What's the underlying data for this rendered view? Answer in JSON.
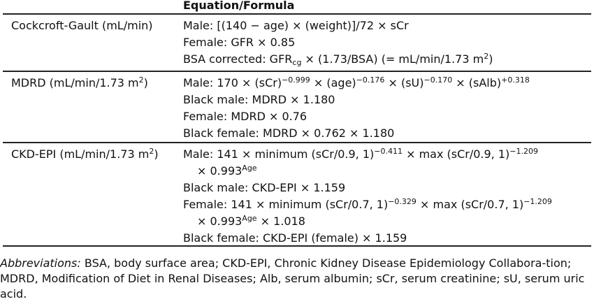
{
  "header": {
    "label": "Equation/Formula"
  },
  "rows": [
    {
      "name": "Cockcroft-Gault (mL/min)",
      "lines": [
        "Male: [(140 − age) × (weight)]/72 × sCr",
        "Female: GFR × 0.85",
        {
          "pre": "BSA corrected: GFR",
          "sub": "cg",
          "post": " × (1.73/BSA) (= mL/min/1.73 m",
          "sup": "2",
          "tail": ")"
        }
      ]
    },
    {
      "name_pre": "MDRD (mL/min/1.73 m",
      "name_sup": "2",
      "name_post": ")",
      "line1": {
        "p1": "Male: 170 × (sCr)",
        "s1": "−0.999",
        "p2": " × (age)",
        "s2": "−0.176",
        "p3": " × (sU)",
        "s3": "−0.170",
        "p4": " × (sAlb)",
        "s4": "+0.318"
      },
      "lines": [
        "Black male: MDRD × 1.180",
        "Female: MDRD × 0.76",
        "Black female: MDRD × 0.762 × 1.180"
      ]
    },
    {
      "name_pre": "CKD-EPI (mL/min/1.73 m",
      "name_sup": "2",
      "name_post": ")",
      "male": {
        "p1": "Male: 141 × minimum (sCr/0.9, 1)",
        "s1": "−0.411",
        "p2": " × max (sCr/0.9, 1)",
        "s2": "−1.209",
        "cont_pre": "× 0.993",
        "cont_sup": "Age"
      },
      "black_male": "Black male: CKD-EPI × 1.159",
      "female": {
        "p1": "Female: 141 × minimum (sCr/0.7, 1)",
        "s1": "−0.329",
        "p2": " × max (sCr/0.7, 1)",
        "s2": "−1.209",
        "cont_pre": "× 0.993",
        "cont_sup": "Age",
        "cont_post": " × 1.018"
      },
      "black_female": "Black female: CKD-EPI (female) × 1.159"
    }
  ],
  "footnote": {
    "label": "Abbreviations:",
    "text": " BSA, body surface area; CKD-EPI, Chronic Kidney Disease Epidemiology Collabora-tion; MDRD, Modification of Diet in Renal Diseases; Alb, serum albumin; sCr, serum creatinine; sU, serum uric acid."
  }
}
